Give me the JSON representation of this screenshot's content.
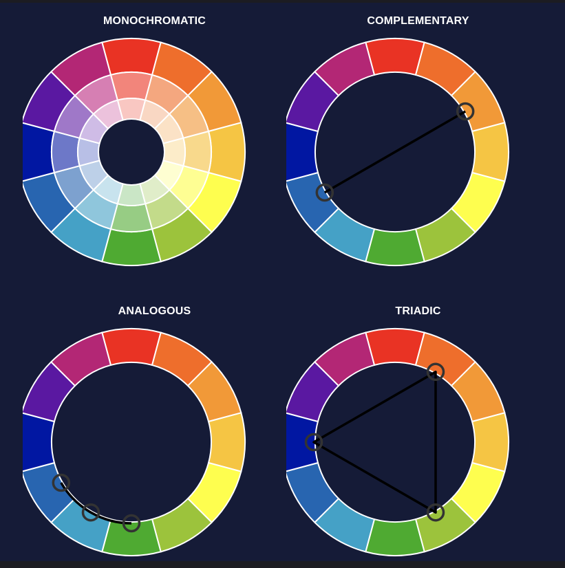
{
  "hues": [
    {
      "name": "red",
      "color": "#e93324"
    },
    {
      "name": "red-orange",
      "color": "#ee6e2c"
    },
    {
      "name": "orange",
      "color": "#f19938"
    },
    {
      "name": "yellow-orange",
      "color": "#f5c544"
    },
    {
      "name": "yellow",
      "color": "#fefe4f"
    },
    {
      "name": "yellow-green",
      "color": "#9cc33c"
    },
    {
      "name": "green",
      "color": "#4faa32"
    },
    {
      "name": "blue-green",
      "color": "#45a1c6"
    },
    {
      "name": "blue",
      "color": "#2865b0"
    },
    {
      "name": "blue-violet",
      "color": "#0117a2"
    },
    {
      "name": "violet",
      "color": "#5a18a1"
    },
    {
      "name": "red-violet",
      "color": "#b32775"
    }
  ],
  "tints": {
    "middle": [
      "#f2857b",
      "#f4a77f",
      "#f6bf85",
      "#f8d98c",
      "#fefe93",
      "#c3db8a",
      "#97cc84",
      "#8fc6dc",
      "#7da1cf",
      "#6d78c8",
      "#9f78c8",
      "#d67fb3"
    ],
    "inner": [
      "#f9c7c2",
      "#f9d7c3",
      "#fbe2c6",
      "#fcecc9",
      "#fefed1",
      "#e0edc9",
      "#cae6c6",
      "#c8e3ee",
      "#bdd0e8",
      "#b8bfe6",
      "#cfbce6",
      "#ecc2dc"
    ]
  },
  "colors": {
    "background": "#151b37",
    "frame": "#1c1c22",
    "title": "#ffffff",
    "segment_border": "#ffffff",
    "marker": "#333333",
    "connector": "#000000"
  },
  "panels": [
    {
      "id": "monochromatic",
      "title": "MONOCHROMATIC",
      "style": "tints",
      "markers": [],
      "connection": "none"
    },
    {
      "id": "complementary",
      "title": "COMPLEMENTARY",
      "style": "ring",
      "markers": [
        2,
        8
      ],
      "connection": "line"
    },
    {
      "id": "analogous",
      "title": "ANALOGOUS",
      "style": "ring",
      "markers": [
        6,
        7,
        8
      ],
      "connection": "arc"
    },
    {
      "id": "triadic",
      "title": "TRIADIC",
      "style": "ring",
      "markers": [
        1,
        5,
        9
      ],
      "connection": "polygon"
    }
  ]
}
